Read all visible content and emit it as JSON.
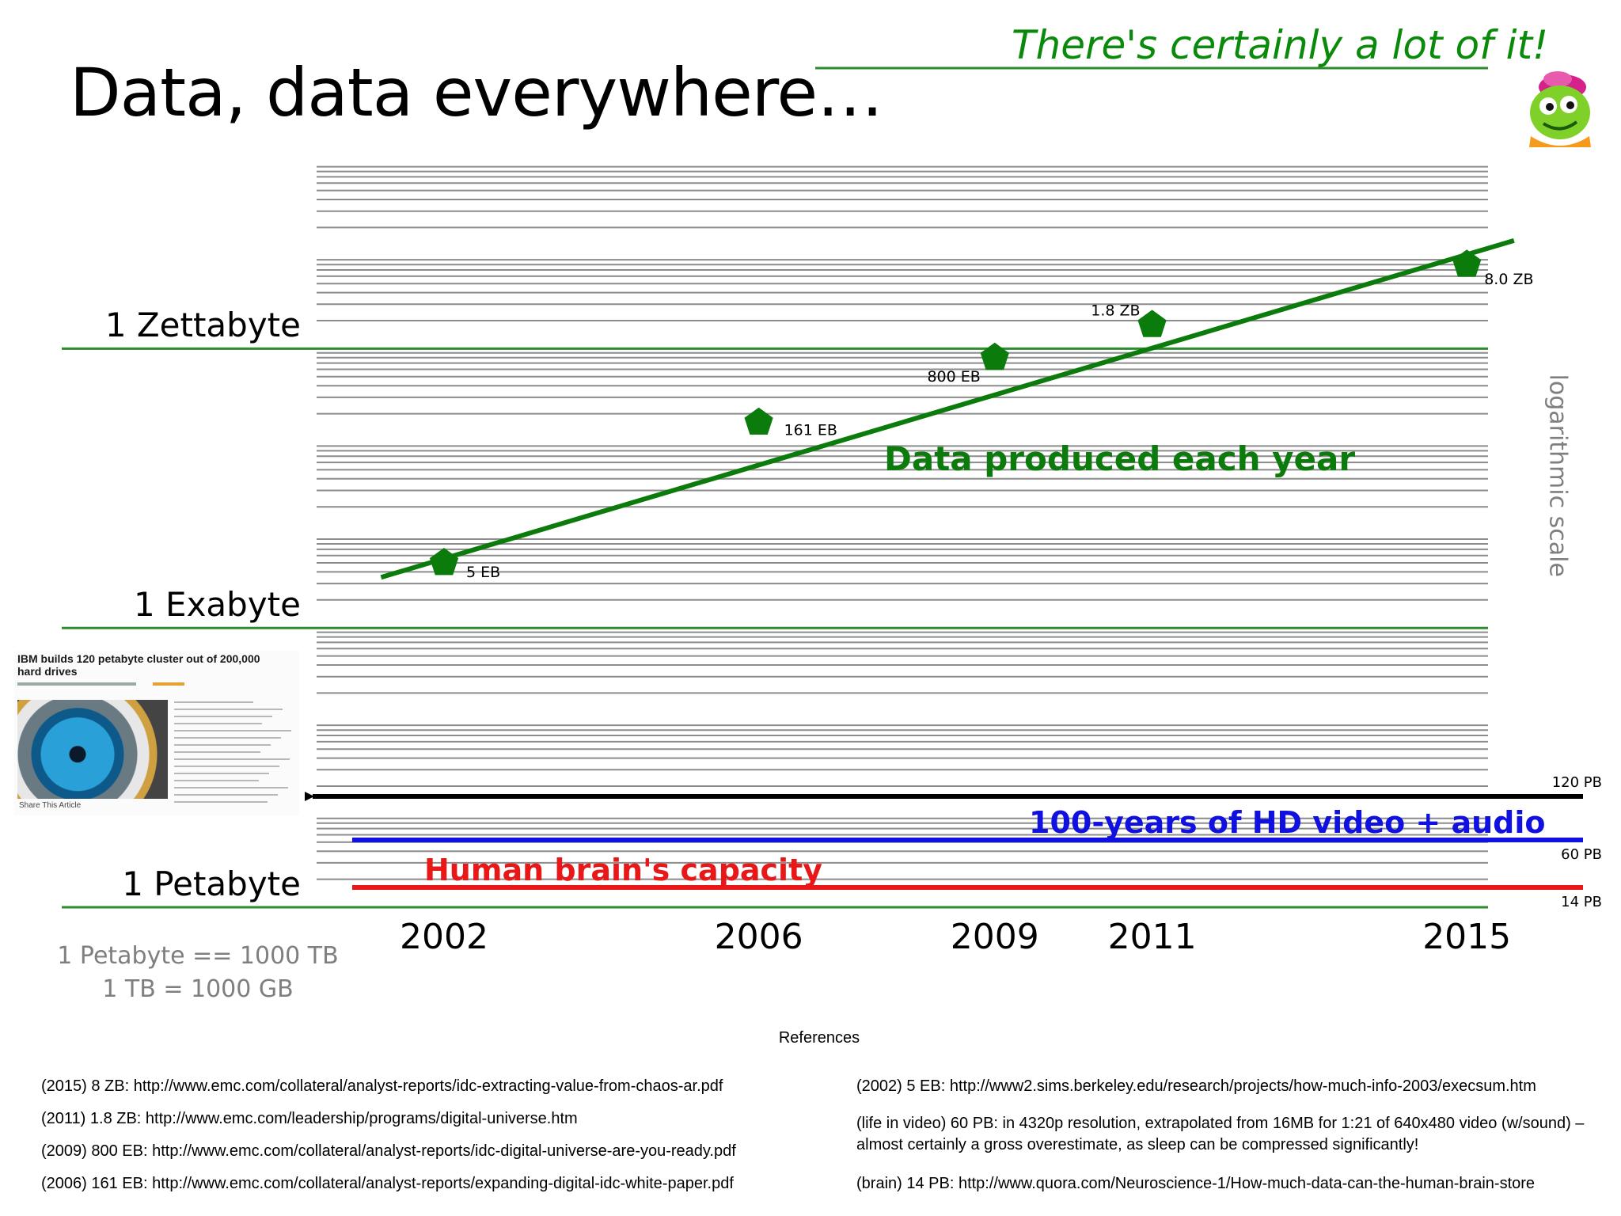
{
  "title": "Data, data everywhere…",
  "tagline": "There's certainly a lot of it!",
  "scale_note": "logarithmic scale",
  "unit_notes": [
    "1 Petabyte  ==  1000 TB",
    "1 TB = 1000 GB"
  ],
  "thumbnail": {
    "headline": "IBM builds 120 petabyte cluster out of 200,000 hard drives",
    "share": "Share This Article"
  },
  "colors": {
    "data_series": "#0b7b0b",
    "zone_line": "#2e8b2e",
    "grid": "#8c8c8c",
    "ibm_cluster": "#000000",
    "hd_video": "#1010e0",
    "brain": "#e81818",
    "muted_text": "#7f7f7f"
  },
  "chart_data": {
    "type": "scatter",
    "y_scale": "log",
    "y_unit": "bytes",
    "ylim": [
      1000000000000000.0,
      1e+23
    ],
    "y_major_ticks": [
      {
        "label": "1 Petabyte",
        "value": 1000000000000000.0
      },
      {
        "label": "1 Exabyte",
        "value": 1e+18
      },
      {
        "label": "1 Zettabyte",
        "value": 1e+21
      }
    ],
    "x_ticks": [
      2002,
      2006,
      2009,
      2011,
      2015
    ],
    "xlim": [
      2001,
      2016
    ],
    "grid": "horizontal",
    "series": [
      {
        "name": "Data produced each year",
        "marker": "pentagon",
        "points": [
          {
            "x": 2002,
            "y": 5e+18,
            "label": "5 EB"
          },
          {
            "x": 2006,
            "y": 1.61e+20,
            "label": "161 EB"
          },
          {
            "x": 2009,
            "y": 8e+20,
            "label": "800 EB"
          },
          {
            "x": 2011,
            "y": 1.8e+21,
            "label": "1.8 ZB"
          },
          {
            "x": 2015,
            "y": 8e+21,
            "label": "8.0 ZB"
          }
        ],
        "trend": {
          "from": [
            2001.2,
            3.5e+18
          ],
          "to": [
            2015.6,
            1.45e+22
          ]
        }
      }
    ],
    "reference_lines": [
      {
        "y": 1.2e+17,
        "label": "120 PB",
        "arrow": true
      },
      {
        "y": 6e+16,
        "label": "60 PB",
        "caption": "100-years of HD video + audio"
      },
      {
        "y": 1.4e+16,
        "label": "14 PB",
        "caption": "Human brain's capacity"
      }
    ]
  },
  "references": {
    "title": "References",
    "left": [
      "(2015) 8 ZB: http://www.emc.com/collateral/analyst-reports/idc-extracting-value-from-chaos-ar.pdf",
      "(2011) 1.8 ZB: http://www.emc.com/leadership/programs/digital-universe.htm",
      "(2009) 800 EB: http://www.emc.com/collateral/analyst-reports/idc-digital-universe-are-you-ready.pdf",
      "(2006) 161 EB: http://www.emc.com/collateral/analyst-reports/expanding-digital-idc-white-paper.pdf"
    ],
    "right": [
      "(2002) 5 EB: http://www2.sims.berkeley.edu/research/projects/how-much-info-2003/execsum.htm",
      "(life in video) 60 PB:  in 4320p resolution, extrapolated from 16MB for 1:21 of 640x480 video (w/sound) – almost certainly a gross overestimate, as sleep can be compressed significantly!",
      "(brain) 14 PB:  http://www.quora.com/Neuroscience-1/How-much-data-can-the-human-brain-store"
    ]
  }
}
